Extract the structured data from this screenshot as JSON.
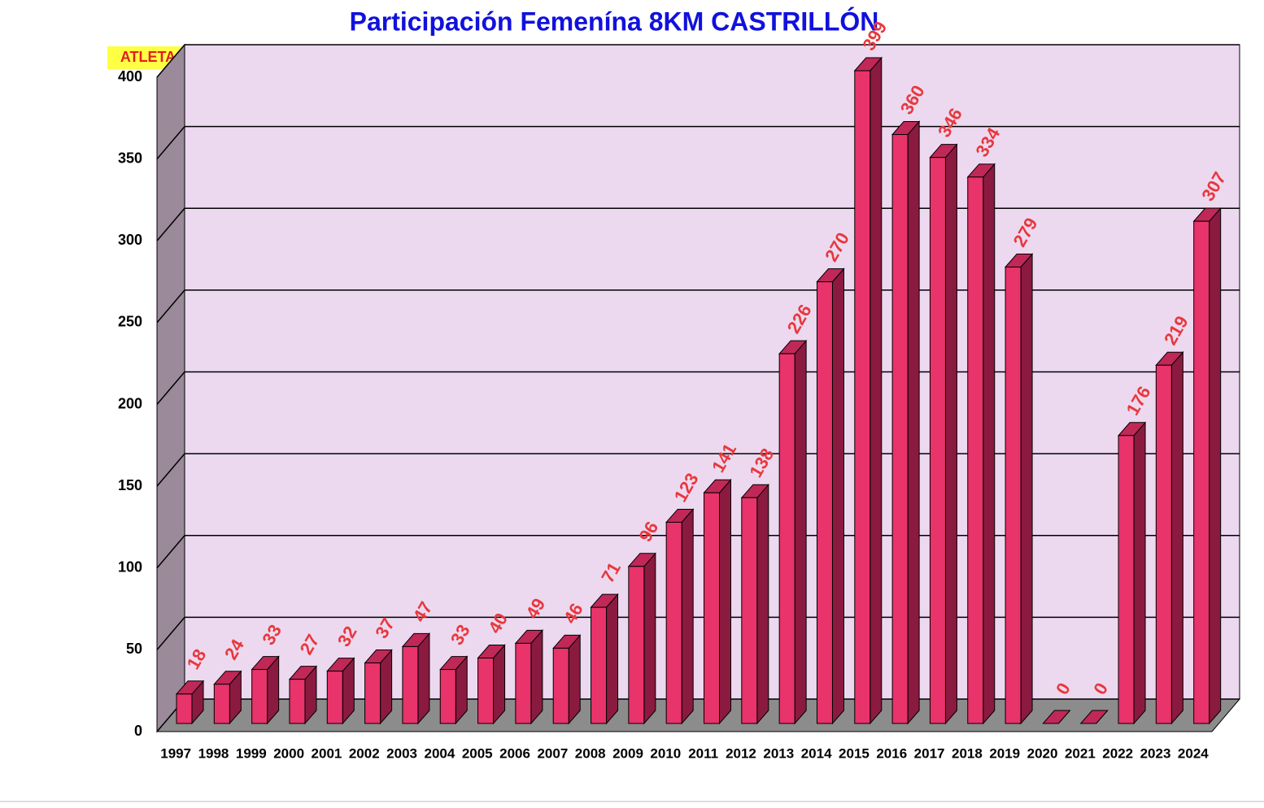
{
  "chart_data": {
    "type": "bar3d",
    "title": "Participación Femenína 8KM CASTRILLÓN",
    "y_label": "ATLETAS",
    "categories": [
      "1997",
      "1998",
      "1999",
      "2000",
      "2001",
      "2002",
      "2003",
      "2004",
      "2005",
      "2006",
      "2007",
      "2008",
      "2009",
      "2010",
      "2011",
      "2012",
      "2013",
      "2014",
      "2015",
      "2016",
      "2017",
      "2018",
      "2019",
      "2020",
      "2021",
      "2022",
      "2023",
      "2024"
    ],
    "values": [
      18,
      24,
      33,
      27,
      32,
      37,
      47,
      33,
      40,
      49,
      46,
      71,
      96,
      123,
      141,
      138,
      226,
      270,
      399,
      360,
      346,
      334,
      279,
      0,
      0,
      176,
      219,
      307
    ],
    "color": "#e8336b",
    "ylim": [
      0,
      400
    ],
    "yticks": [
      0,
      50,
      100,
      150,
      200,
      250,
      300,
      350,
      400
    ],
    "grid": true
  }
}
